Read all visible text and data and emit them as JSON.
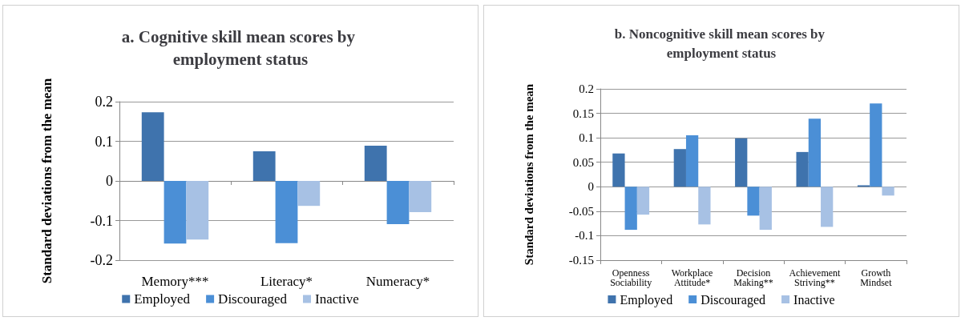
{
  "chart_data": [
    {
      "type": "bar",
      "title": "a. Cognitive skill mean scores by employment status",
      "ylabel": "Standard deviations from the mean",
      "categories": [
        "Memory***",
        "Literacy*",
        "Numeracy*"
      ],
      "series": [
        {
          "name": "Employed",
          "color": "#3f73ad",
          "values": [
            0.173,
            0.075,
            0.089
          ]
        },
        {
          "name": "Discouraged",
          "color": "#4b8fd6",
          "values": [
            -0.158,
            -0.157,
            -0.109
          ]
        },
        {
          "name": "Inactive",
          "color": "#a7c1e4",
          "values": [
            -0.148,
            -0.063,
            -0.079
          ]
        }
      ],
      "ylim": [
        -0.2,
        0.2
      ],
      "yticks": [
        -0.2,
        -0.1,
        0,
        0.1,
        0.2
      ],
      "grid": "y",
      "legend": "bottom"
    },
    {
      "type": "bar",
      "title": "b. Noncognitive skill mean scores by employment status",
      "ylabel": "Standard deviations from the mean",
      "categories": [
        "Openness Sociability",
        "Workplace Attitude*",
        "Decision Making**",
        "Achievement Striving**",
        "Growth Mindset"
      ],
      "series": [
        {
          "name": "Employed",
          "color": "#3f73ad",
          "values": [
            0.068,
            0.077,
            0.099,
            0.071,
            0.003
          ]
        },
        {
          "name": "Discouraged",
          "color": "#4b8fd6",
          "values": [
            -0.088,
            0.105,
            -0.059,
            0.139,
            0.17
          ]
        },
        {
          "name": "Inactive",
          "color": "#a7c1e4",
          "values": [
            -0.057,
            -0.077,
            -0.088,
            -0.082,
            -0.018
          ]
        }
      ],
      "ylim": [
        -0.15,
        0.2
      ],
      "yticks": [
        -0.15,
        -0.1,
        -0.05,
        0,
        0.05,
        0.1,
        0.15,
        0.2
      ],
      "grid": "y",
      "legend": "bottom"
    }
  ]
}
